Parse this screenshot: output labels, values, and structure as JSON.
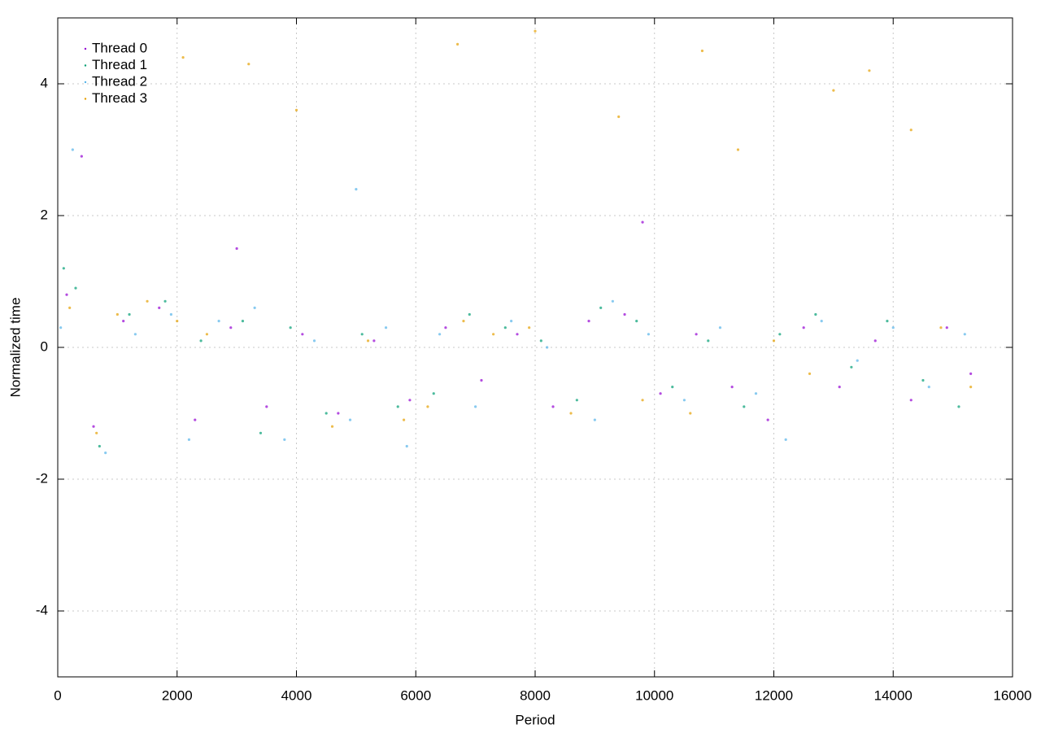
{
  "chart_data": {
    "type": "scatter",
    "x_label": "Period",
    "y_label": "Normalized time",
    "xlim": [
      0,
      16000
    ],
    "xticks": [
      0,
      2000,
      4000,
      6000,
      8000,
      10000,
      12000,
      14000,
      16000
    ],
    "ylim": [
      -5,
      5
    ],
    "yticks": [
      -4,
      -2,
      0,
      2,
      4
    ],
    "grid": true,
    "legend": "top-left",
    "series": [
      {
        "name": "Thread 0",
        "color": "#9400d3",
        "x": [
          150,
          400,
          600,
          1100,
          1700,
          2300,
          2900,
          3000,
          3500,
          4100,
          4700,
          5300,
          5900,
          6500,
          7100,
          7700,
          8300,
          8900,
          9500,
          9800,
          10100,
          10700,
          11300,
          11900,
          12500,
          13100,
          13700,
          14300,
          14900,
          15300
        ],
        "values": [
          0.8,
          2.9,
          -1.2,
          0.4,
          0.6,
          -1.1,
          0.3,
          1.5,
          -0.9,
          0.2,
          -1.0,
          0.1,
          -0.8,
          0.3,
          -0.5,
          0.2,
          -0.9,
          0.4,
          0.5,
          1.9,
          -0.7,
          0.2,
          -0.6,
          -1.1,
          0.3,
          -0.6,
          0.1,
          -0.8,
          0.3,
          -0.4
        ]
      },
      {
        "name": "Thread 1",
        "color": "#009e73",
        "x": [
          100,
          300,
          700,
          1200,
          1800,
          2400,
          3100,
          3400,
          3900,
          4500,
          5100,
          5700,
          6300,
          6900,
          7500,
          8100,
          8700,
          9100,
          9700,
          10300,
          10900,
          11500,
          12100,
          12700,
          13300,
          13900,
          14500,
          15100
        ],
        "values": [
          1.2,
          0.9,
          -1.5,
          0.5,
          0.7,
          0.1,
          0.4,
          -1.3,
          0.3,
          -1.0,
          0.2,
          -0.9,
          -0.7,
          0.5,
          0.3,
          0.1,
          -0.8,
          0.6,
          0.4,
          -0.6,
          0.1,
          -0.9,
          0.2,
          0.5,
          -0.3,
          0.4,
          -0.5,
          -0.9
        ]
      },
      {
        "name": "Thread 2",
        "color": "#56b4e9",
        "x": [
          50,
          250,
          800,
          1300,
          1900,
          2200,
          2700,
          3300,
          3800,
          4300,
          4900,
          5500,
          5850,
          6400,
          7000,
          7600,
          8200,
          9000,
          9300,
          9900,
          10500,
          11100,
          11700,
          12200,
          12800,
          13400,
          14000,
          14600,
          15200,
          5000
        ],
        "values": [
          0.3,
          3.0,
          -1.6,
          0.2,
          0.5,
          -1.4,
          0.4,
          0.6,
          -1.4,
          0.1,
          -1.1,
          0.3,
          -1.5,
          0.2,
          -0.9,
          0.4,
          0.0,
          -1.1,
          0.7,
          0.2,
          -0.8,
          0.3,
          -0.7,
          -1.4,
          0.4,
          -0.2,
          0.3,
          -0.6,
          0.2,
          2.4
        ]
      },
      {
        "name": "Thread 3",
        "color": "#e69f00",
        "x": [
          200,
          650,
          1000,
          1500,
          2000,
          2100,
          2500,
          3200,
          4000,
          4600,
          5200,
          5800,
          6200,
          6700,
          6800,
          7300,
          7900,
          8000,
          8600,
          9400,
          9800,
          10600,
          10800,
          11400,
          12000,
          12600,
          13000,
          13600,
          14300,
          14800,
          15300
        ],
        "values": [
          0.6,
          -1.3,
          0.5,
          0.7,
          0.4,
          4.4,
          0.2,
          4.3,
          3.6,
          -1.2,
          0.1,
          -1.1,
          -0.9,
          4.6,
          0.4,
          0.2,
          0.3,
          4.8,
          -1.0,
          3.5,
          -0.8,
          -1.0,
          4.5,
          3.0,
          0.1,
          -0.4,
          3.9,
          4.2,
          3.3,
          0.3,
          -0.6
        ]
      }
    ]
  }
}
